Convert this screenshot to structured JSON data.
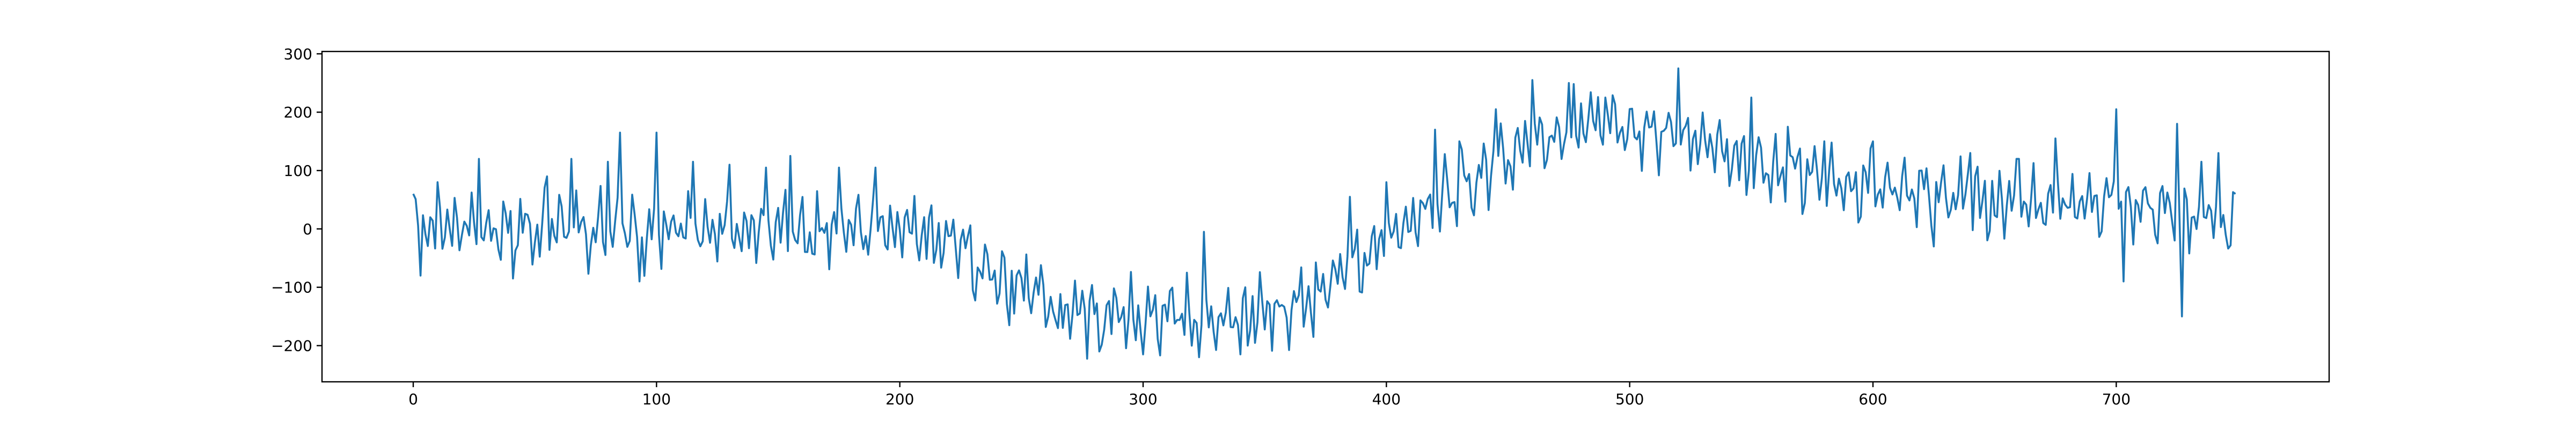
{
  "chart_data": {
    "type": "line",
    "title": "",
    "xlabel": "",
    "ylabel": "",
    "xlim": [
      -37.5,
      787.5
    ],
    "ylim": [
      -262,
      304
    ],
    "x_ticks": [
      0,
      100,
      200,
      300,
      400,
      500,
      600,
      700
    ],
    "y_ticks": [
      -200,
      -100,
      0,
      100,
      200,
      300
    ],
    "x_tick_labels": [
      "0",
      "100",
      "200",
      "300",
      "400",
      "500",
      "600",
      "700"
    ],
    "y_tick_labels": [
      "−200",
      "−100",
      "0",
      "100",
      "200",
      "300"
    ],
    "grid": false,
    "legend": "none",
    "series": [
      {
        "color": "#1f77b4",
        "x_start": 0,
        "x_step": 1,
        "trend_points": [
          [
            0,
            0
          ],
          [
            100,
            0
          ],
          [
            200,
            0
          ],
          [
            220,
            -10
          ],
          [
            240,
            -80
          ],
          [
            280,
            -150
          ],
          [
            300,
            -150
          ],
          [
            340,
            -150
          ],
          [
            360,
            -140
          ],
          [
            380,
            -80
          ],
          [
            400,
            -20
          ],
          [
            420,
            40
          ],
          [
            440,
            90
          ],
          [
            460,
            150
          ],
          [
            480,
            180
          ],
          [
            500,
            170
          ],
          [
            520,
            160
          ],
          [
            540,
            120
          ],
          [
            560,
            100
          ],
          [
            600,
            70
          ],
          [
            650,
            50
          ],
          [
            700,
            40
          ],
          [
            749,
            30
          ]
        ],
        "highlight_points": [
          [
            0,
            60
          ],
          [
            3,
            -80
          ],
          [
            10,
            80
          ],
          [
            27,
            120
          ],
          [
            41,
            -85
          ],
          [
            55,
            90
          ],
          [
            65,
            120
          ],
          [
            80,
            115
          ],
          [
            85,
            165
          ],
          [
            93,
            -90
          ],
          [
            100,
            165
          ],
          [
            115,
            115
          ],
          [
            130,
            110
          ],
          [
            145,
            105
          ],
          [
            155,
            125
          ],
          [
            175,
            105
          ],
          [
            190,
            105
          ],
          [
            210,
            20
          ],
          [
            230,
            -105
          ],
          [
            245,
            -165
          ],
          [
            265,
            -170
          ],
          [
            282,
            -210
          ],
          [
            300,
            -215
          ],
          [
            320,
            -200
          ],
          [
            325,
            -5
          ],
          [
            340,
            -215
          ],
          [
            370,
            -185
          ],
          [
            385,
            55
          ],
          [
            400,
            80
          ],
          [
            420,
            170
          ],
          [
            430,
            150
          ],
          [
            445,
            205
          ],
          [
            460,
            255
          ],
          [
            475,
            250
          ],
          [
            490,
            225
          ],
          [
            520,
            275
          ],
          [
            525,
            100
          ],
          [
            550,
            225
          ],
          [
            565,
            175
          ],
          [
            580,
            150
          ],
          [
            600,
            150
          ],
          [
            620,
            100
          ],
          [
            625,
            -30
          ],
          [
            640,
            130
          ],
          [
            660,
            120
          ],
          [
            675,
            155
          ],
          [
            700,
            205
          ],
          [
            703,
            -90
          ],
          [
            725,
            180
          ],
          [
            727,
            -150
          ],
          [
            735,
            115
          ],
          [
            742,
            130
          ],
          [
            745,
            -10
          ],
          [
            749,
            60
          ]
        ],
        "amplitude": 55,
        "seed": 42
      }
    ]
  }
}
